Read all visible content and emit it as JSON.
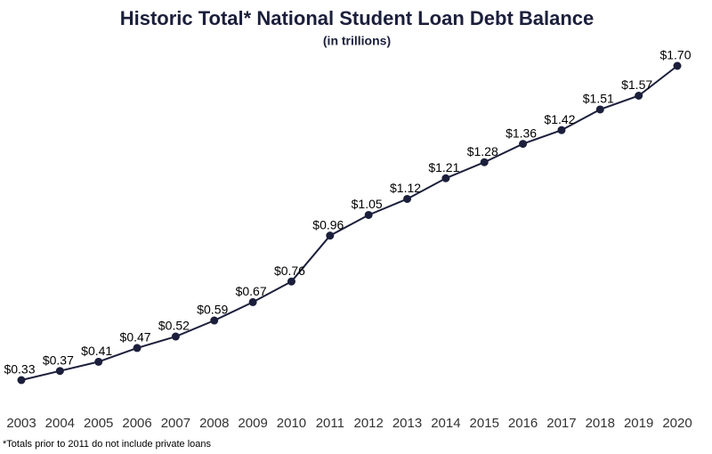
{
  "chart_data": {
    "type": "line",
    "title": "Historic Total* National Student Loan Debt Balance",
    "subtitle": "(in trillions)",
    "footnote": "*Totals prior to 2011 do not include private loans",
    "categories": [
      "2003",
      "2004",
      "2005",
      "2006",
      "2007",
      "2008",
      "2009",
      "2010",
      "2011",
      "2012",
      "2013",
      "2014",
      "2015",
      "2016",
      "2017",
      "2018",
      "2019",
      "2020"
    ],
    "series": [
      {
        "name": "Student Loan Debt",
        "color": "#1b1f3b",
        "values": [
          0.33,
          0.37,
          0.41,
          0.47,
          0.52,
          0.59,
          0.67,
          0.76,
          0.96,
          1.05,
          1.12,
          1.21,
          1.28,
          1.36,
          1.42,
          1.51,
          1.57,
          1.7
        ],
        "value_labels": [
          "$0.33",
          "$0.37",
          "$0.41",
          "$0.47",
          "$0.52",
          "$0.59",
          "$0.67",
          "$0.76",
          "$0.96",
          "$1.05",
          "$1.12",
          "$1.21",
          "$1.28",
          "$1.36",
          "$1.42",
          "$1.51",
          "$1.57",
          "$1.70"
        ]
      }
    ]
  }
}
